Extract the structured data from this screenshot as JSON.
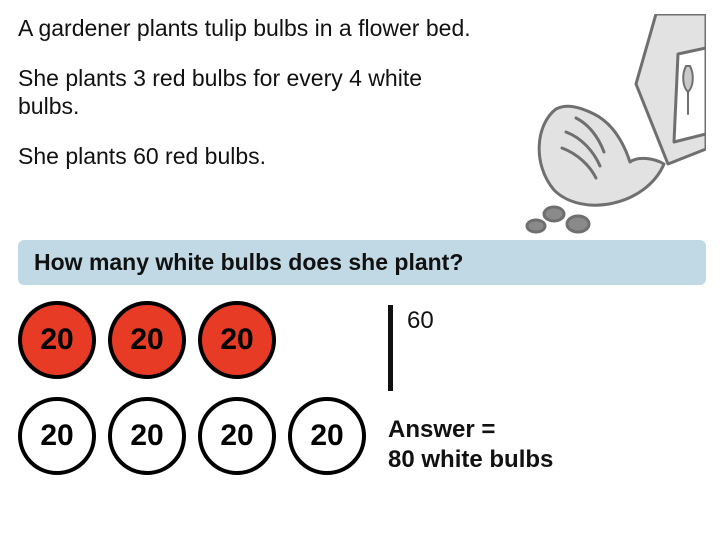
{
  "text": {
    "p1": "A gardener plants tulip bulbs in a flower bed.",
    "p2": "She plants 3 red bulbs for every 4 white bulbs.",
    "p3": "She plants 60 red bulbs."
  },
  "question": {
    "label": "How many white bulbs does she plant?",
    "bg_color": "#c1d9e5",
    "text_color": "#111111"
  },
  "bulbs": {
    "red_row": {
      "count": 3,
      "value": "20",
      "fill": "#e73b26",
      "border": "#000000",
      "text_color": "#000000"
    },
    "white_row": {
      "count": 4,
      "value": "20",
      "fill": "#ffffff",
      "border": "#000000",
      "text_color": "#000000"
    }
  },
  "working": {
    "total_red": "60",
    "answer_label": "Answer =",
    "answer_value": "80 white bulbs"
  },
  "illustration": {
    "stroke": "#6f6f6f",
    "fill_light": "#e2e2e2",
    "fill_mid": "#c9c9c9",
    "fill_dark": "#8a8a8a"
  }
}
